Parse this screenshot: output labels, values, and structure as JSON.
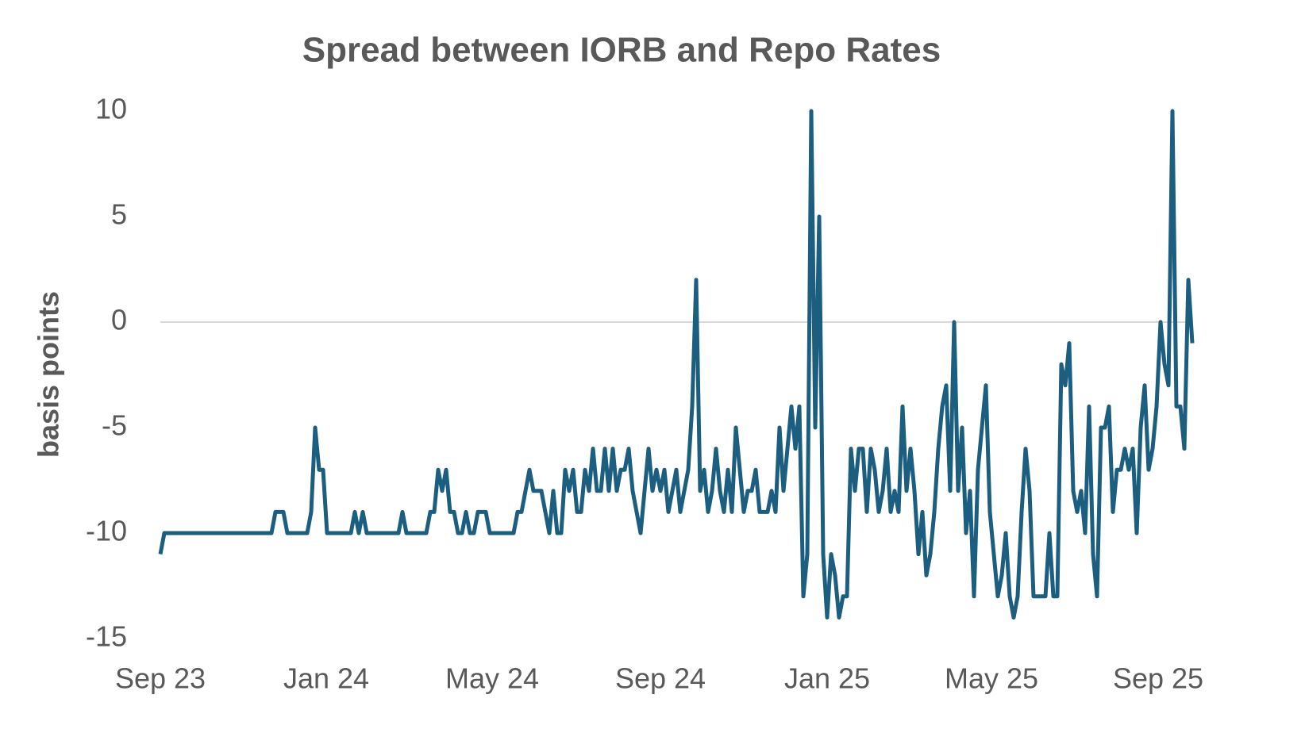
{
  "chart_data": {
    "type": "line",
    "title": "Spread  between IORB and Repo Rates",
    "y_label": "basis points",
    "series": [
      {
        "color": "#1b5e80",
        "values": [
          -11,
          -10,
          -10,
          -10,
          -10,
          -10,
          -10,
          -10,
          -10,
          -10,
          -10,
          -10,
          -10,
          -10,
          -10,
          -10,
          -10,
          -10,
          -10,
          -10,
          -10,
          -10,
          -10,
          -10,
          -10,
          -10,
          -10,
          -10,
          -10,
          -9,
          -9,
          -9,
          -10,
          -10,
          -10,
          -10,
          -10,
          -10,
          -9,
          -5,
          -7,
          -7,
          -10,
          -10,
          -10,
          -10,
          -10,
          -10,
          -10,
          -9,
          -10,
          -9,
          -10,
          -10,
          -10,
          -10,
          -10,
          -10,
          -10,
          -10,
          -10,
          -9,
          -10,
          -10,
          -10,
          -10,
          -10,
          -10,
          -9,
          -9,
          -7,
          -8,
          -7,
          -9,
          -9,
          -10,
          -10,
          -9,
          -10,
          -10,
          -9,
          -9,
          -9,
          -10,
          -10,
          -10,
          -10,
          -10,
          -10,
          -10,
          -9,
          -9,
          -8,
          -7,
          -8,
          -8,
          -8,
          -9,
          -10,
          -8,
          -10,
          -10,
          -7,
          -8,
          -7,
          -9,
          -9,
          -7,
          -8,
          -6,
          -8,
          -8,
          -6,
          -8,
          -6,
          -8,
          -7,
          -7,
          -6,
          -8,
          -9,
          -10,
          -8,
          -6,
          -8,
          -7,
          -8,
          -7,
          -9,
          -8,
          -7,
          -9,
          -8,
          -7,
          -4,
          2,
          -8,
          -7,
          -9,
          -8,
          -6,
          -8,
          -9,
          -7,
          -9,
          -5,
          -7,
          -9,
          -8,
          -8,
          -7,
          -9,
          -9,
          -9,
          -8,
          -9,
          -5,
          -8,
          -6,
          -4,
          -6,
          -4,
          -13,
          -11,
          10,
          -5,
          5,
          -11,
          -14,
          -11,
          -12,
          -14,
          -13,
          -13,
          -6,
          -8,
          -6,
          -6,
          -9,
          -6,
          -7,
          -9,
          -8,
          -6,
          -9,
          -8,
          -9,
          -4,
          -8,
          -6,
          -8,
          -11,
          -9,
          -12,
          -11,
          -9,
          -6,
          -4,
          -3,
          -8,
          0,
          -8,
          -5,
          -10,
          -8,
          -13,
          -7,
          -5,
          -3,
          -9,
          -11,
          -13,
          -12,
          -10,
          -13,
          -14,
          -13,
          -9,
          -6,
          -8,
          -13,
          -13,
          -13,
          -13,
          -10,
          -13,
          -13,
          -2,
          -3,
          -1,
          -8,
          -9,
          -8,
          -10,
          -4,
          -11,
          -13,
          -5,
          -5,
          -4,
          -9,
          -7,
          -7,
          -6,
          -7,
          -6,
          -10,
          -5,
          -3,
          -7,
          -6,
          -4,
          0,
          -2,
          -3,
          10,
          -4,
          -4,
          -6,
          2,
          -1
        ]
      }
    ],
    "xlim": [
      0,
      260
    ],
    "xticks": [
      {
        "value": 0,
        "label": "Sep 23"
      },
      {
        "value": 41.8,
        "label": "Jan 24"
      },
      {
        "value": 83.6,
        "label": "May 24"
      },
      {
        "value": 126,
        "label": "Sep 24"
      },
      {
        "value": 168,
        "label": "Jan 25"
      },
      {
        "value": 209.4,
        "label": "May 25"
      },
      {
        "value": 251.4,
        "label": "Sep 25"
      }
    ],
    "ylim": [
      -15,
      10
    ],
    "yticks": [
      -15,
      -10,
      -5,
      0,
      5,
      10
    ],
    "zero_line": true
  }
}
